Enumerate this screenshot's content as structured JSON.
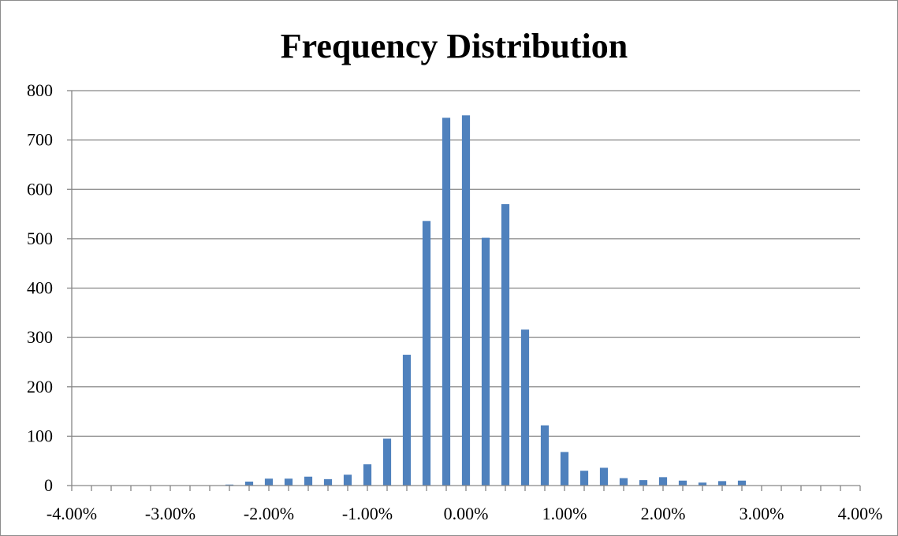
{
  "chart_data": {
    "type": "bar",
    "title": "Frequency Distribution",
    "xlabel": "",
    "ylabel": "",
    "xlim": [
      -4.0,
      4.0
    ],
    "ylim": [
      0,
      800
    ],
    "x_tick_labels": [
      "-4.00%",
      "-3.00%",
      "-2.00%",
      "-1.00%",
      "0.00%",
      "1.00%",
      "2.00%",
      "3.00%",
      "4.00%"
    ],
    "y_tick_labels": [
      "0",
      "100",
      "200",
      "300",
      "400",
      "500",
      "600",
      "700",
      "800"
    ],
    "grid": "horizontal",
    "legend": "none",
    "bar_color": "#4f81bd",
    "gridline_color": "#868686",
    "x": [
      -2.4,
      -2.2,
      -2.0,
      -1.8,
      -1.6,
      -1.4,
      -1.2,
      -1.0,
      -0.8,
      -0.6,
      -0.4,
      -0.2,
      0.0,
      0.2,
      0.4,
      0.6,
      0.8,
      1.0,
      1.2,
      1.4,
      1.6,
      1.8,
      2.0,
      2.2,
      2.4,
      2.6,
      2.8
    ],
    "values": [
      2,
      8,
      14,
      14,
      18,
      13,
      22,
      43,
      95,
      265,
      536,
      745,
      750,
      502,
      570,
      316,
      122,
      68,
      30,
      36,
      15,
      11,
      17,
      10,
      6,
      9,
      10
    ]
  }
}
